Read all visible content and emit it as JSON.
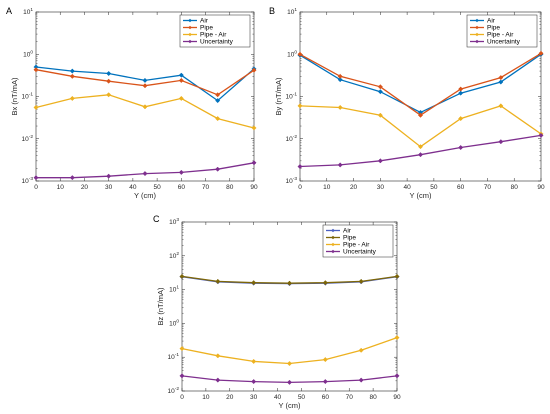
{
  "colors": {
    "air": "#0072bd",
    "pipe": "#d95319",
    "pipe_air": "#edb120",
    "uncertainty": "#7e2f8e",
    "air_c": "#4a5fc1",
    "pipe_c": "#7d6608"
  },
  "chart_data": [
    {
      "panel": "A",
      "type": "line",
      "yscale": "log",
      "xlabel": "Y (cm)",
      "ylabel": "Bx (nT/mA)",
      "xlim": [
        0,
        90
      ],
      "ylim": [
        0.001,
        10
      ],
      "xticks": [
        "0",
        "10",
        "20",
        "30",
        "40",
        "50",
        "60",
        "70",
        "80",
        "90"
      ],
      "x": [
        0,
        15,
        30,
        45,
        60,
        75,
        90
      ],
      "legend_loc": "top-right",
      "series": [
        {
          "name": "Air",
          "color": "#0072bd",
          "values": [
            0.5,
            0.4,
            0.35,
            0.24,
            0.32,
            0.08,
            0.45
          ]
        },
        {
          "name": "Pipe",
          "color": "#d95319",
          "values": [
            0.43,
            0.3,
            0.23,
            0.18,
            0.24,
            0.11,
            0.42
          ]
        },
        {
          "name": "Pipe - Air",
          "color": "#edb120",
          "values": [
            0.055,
            0.09,
            0.11,
            0.057,
            0.09,
            0.03,
            0.018
          ]
        },
        {
          "name": "Uncertainty",
          "color": "#7e2f8e",
          "values": [
            0.0012,
            0.0012,
            0.0013,
            0.0015,
            0.0016,
            0.0019,
            0.0027
          ]
        }
      ]
    },
    {
      "panel": "B",
      "type": "line",
      "yscale": "log",
      "xlabel": "Y (cm)",
      "ylabel": "By (nT/mA)",
      "xlim": [
        0,
        90
      ],
      "ylim": [
        0.001,
        10
      ],
      "xticks": [
        "0",
        "10",
        "20",
        "30",
        "40",
        "50",
        "60",
        "70",
        "80",
        "90"
      ],
      "x": [
        0,
        15,
        30,
        45,
        60,
        75,
        90
      ],
      "legend_loc": "top-right",
      "series": [
        {
          "name": "Air",
          "color": "#0072bd",
          "values": [
            0.95,
            0.25,
            0.13,
            0.042,
            0.12,
            0.22,
            1.0
          ]
        },
        {
          "name": "Pipe",
          "color": "#d95319",
          "values": [
            1.0,
            0.3,
            0.17,
            0.036,
            0.15,
            0.28,
            1.05
          ]
        },
        {
          "name": "Pipe - Air",
          "color": "#edb120",
          "values": [
            0.06,
            0.055,
            0.036,
            0.0065,
            0.03,
            0.06,
            0.013
          ]
        },
        {
          "name": "Uncertainty",
          "color": "#7e2f8e",
          "values": [
            0.0022,
            0.0024,
            0.003,
            0.0042,
            0.0062,
            0.0085,
            0.012
          ]
        }
      ]
    },
    {
      "panel": "C",
      "type": "line",
      "yscale": "log",
      "xlabel": "Y (cm)",
      "ylabel": "Bz (nT/mA)",
      "xlim": [
        0,
        90
      ],
      "ylim": [
        0.01,
        1000
      ],
      "xticks": [
        "0",
        "10",
        "20",
        "30",
        "40",
        "50",
        "60",
        "70",
        "80",
        "90"
      ],
      "x": [
        0,
        15,
        30,
        45,
        60,
        75,
        90
      ],
      "legend_loc": "top-right",
      "series": [
        {
          "name": "Air",
          "color": "#4a5fc1",
          "values": [
            24,
            17,
            15.5,
            15,
            15.5,
            17,
            24
          ]
        },
        {
          "name": "Pipe",
          "color": "#7d6608",
          "values": [
            24.5,
            17.5,
            16,
            15.5,
            16,
            17.5,
            24.5
          ]
        },
        {
          "name": "Pipe - Air",
          "color": "#edb120",
          "values": [
            0.18,
            0.11,
            0.075,
            0.065,
            0.085,
            0.16,
            0.38
          ]
        },
        {
          "name": "Uncertainty",
          "color": "#7e2f8e",
          "values": [
            0.028,
            0.021,
            0.019,
            0.018,
            0.019,
            0.021,
            0.028
          ]
        }
      ]
    }
  ]
}
